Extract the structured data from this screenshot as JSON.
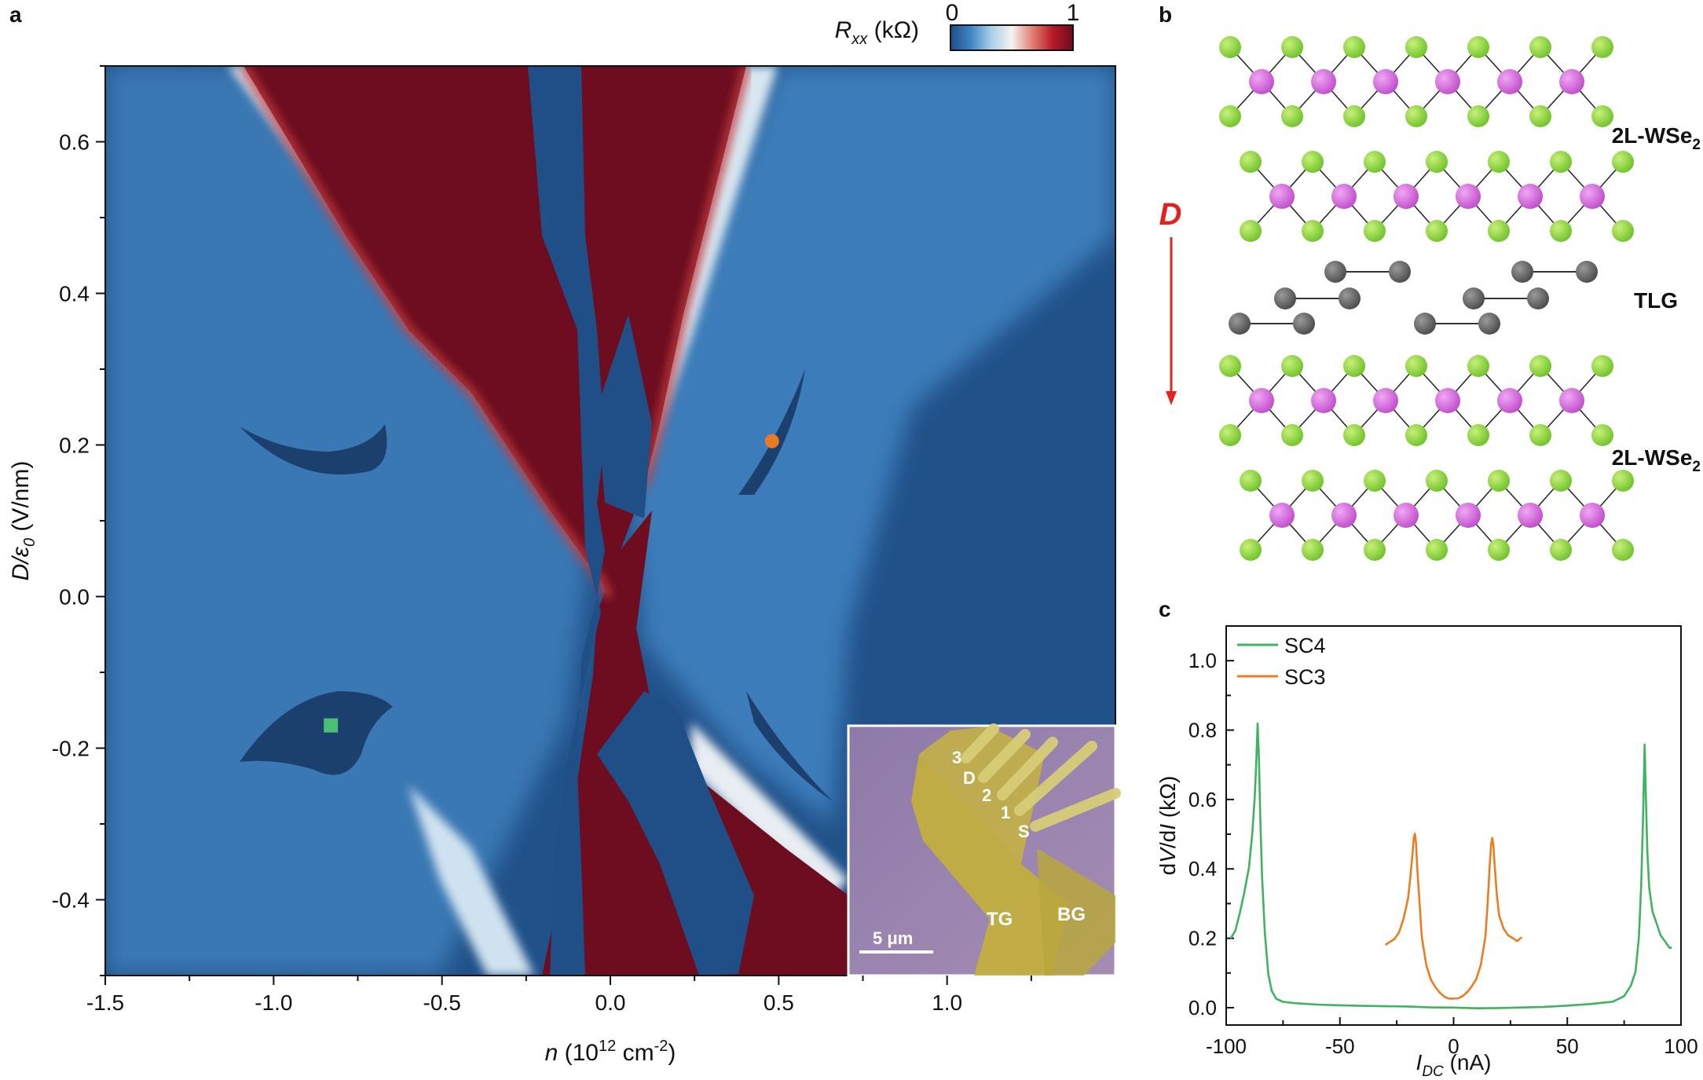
{
  "panels": {
    "a": {
      "letter": "a",
      "colorbar": {
        "label_main": "R",
        "label_sub": "xx",
        "label_unit": " (kΩ)",
        "min_label": "0",
        "max_label": "1",
        "colors": [
          "#1c4e87",
          "#3f86c4",
          "#a9cfe8",
          "#f6f1ef",
          "#e28074",
          "#b81b28",
          "#6a0b1e"
        ]
      },
      "xlabel": {
        "main": "n",
        "rest": " (10",
        "sup": "12",
        "tail": " cm",
        "sup2": "-2",
        "end": ")"
      },
      "ylabel": {
        "main": "D/ε",
        "sub": "0",
        "rest": " (V/nm)"
      },
      "xticks": [
        "-1.5",
        "-1.0",
        "-0.5",
        "0.0",
        "0.5",
        "1.0"
      ],
      "yticks": [
        "0.6",
        "0.4",
        "0.2",
        "0.0",
        "-0.2",
        "-0.4"
      ],
      "markers": [
        {
          "name": "orange-dot",
          "n": 0.48,
          "d": 0.205,
          "color": "#ec7a24"
        },
        {
          "name": "green-square",
          "n": -0.83,
          "d": -0.17,
          "color": "#4cbf76"
        }
      ],
      "inset": {
        "labels": [
          "3",
          "D",
          "2",
          "1",
          "S",
          "TG",
          "BG"
        ],
        "scalebar": "5 μm"
      }
    },
    "b": {
      "letter": "b",
      "top_label": {
        "main": "2L-WSe",
        "sub": "2"
      },
      "middle_label": "TLG",
      "bottom_label": {
        "main": "2L-WSe",
        "sub": "2"
      },
      "field_label": "D",
      "colors": {
        "se": "#7ed23a",
        "w": "#cf58d8",
        "c": "#5f5f5f",
        "arrow": "#e0231f"
      }
    },
    "c": {
      "letter": "c"
    }
  },
  "chart_data": [
    {
      "type": "heatmap",
      "panel": "a",
      "xlabel": "n (10^12 cm^-2)",
      "ylabel": "D/ε0 (V/nm)",
      "xlim": [
        -1.5,
        1.5
      ],
      "ylim": [
        -0.5,
        0.7
      ],
      "colorbar": {
        "label": "Rxx (kΩ)",
        "range": [
          0,
          1
        ]
      },
      "markers": [
        {
          "n": 0.48,
          "d": 0.205,
          "color": "orange"
        },
        {
          "n": -0.83,
          "d": -0.17,
          "color": "green"
        }
      ]
    },
    {
      "type": "line",
      "panel": "c",
      "xlabel": "I_DC (nA)",
      "ylabel": "dV/dI (kΩ)",
      "xlim": [
        -100,
        100
      ],
      "ylim": [
        -0.05,
        1.1
      ],
      "xticks": [
        -100,
        -50,
        0,
        50,
        100
      ],
      "yticks": [
        0.0,
        0.2,
        0.4,
        0.6,
        0.8,
        1.0
      ],
      "legend": "top-left",
      "series": [
        {
          "name": "SC4",
          "color": "#3fb35f",
          "x": [
            -98,
            -96,
            -94,
            -92,
            -90,
            -88.5,
            -87.5,
            -86.8,
            -86.2,
            -85.6,
            -85,
            -84.2,
            -83,
            -81.5,
            -80,
            -78,
            -75,
            -70,
            -60,
            -50,
            -40,
            -30,
            -20,
            -10,
            0,
            10,
            20,
            30,
            40,
            50,
            60,
            70,
            75,
            78,
            80,
            81.5,
            82.5,
            83.3,
            84,
            84.6,
            85.2,
            86,
            87.5,
            89,
            91,
            93,
            95,
            96
          ],
          "y": [
            0.2,
            0.22,
            0.27,
            0.33,
            0.4,
            0.5,
            0.6,
            0.7,
            0.82,
            0.72,
            0.55,
            0.38,
            0.22,
            0.1,
            0.05,
            0.025,
            0.015,
            0.01,
            0.005,
            0.003,
            0.002,
            0.002,
            0.003,
            0.002,
            0.003,
            0.002,
            0.003,
            0.004,
            0.005,
            0.007,
            0.01,
            0.015,
            0.03,
            0.06,
            0.1,
            0.2,
            0.35,
            0.55,
            0.76,
            0.6,
            0.45,
            0.35,
            0.28,
            0.25,
            0.21,
            0.19,
            0.17,
            0.17
          ]
        },
        {
          "name": "SC3",
          "color": "#ea7d22",
          "x": [
            -30,
            -28,
            -26,
            -24,
            -22,
            -20,
            -19,
            -18,
            -17.5,
            -17,
            -16.5,
            -16,
            -15,
            -14,
            -12,
            -10,
            -8,
            -6,
            -4,
            -2,
            0,
            2,
            4,
            6,
            8,
            10,
            12,
            14,
            15,
            16,
            16.5,
            17,
            17.5,
            18,
            19,
            20,
            22,
            24,
            26,
            28,
            30
          ],
          "y": [
            0.18,
            0.19,
            0.2,
            0.22,
            0.26,
            0.32,
            0.38,
            0.45,
            0.49,
            0.5,
            0.47,
            0.4,
            0.3,
            0.2,
            0.12,
            0.08,
            0.06,
            0.045,
            0.035,
            0.03,
            0.03,
            0.03,
            0.035,
            0.045,
            0.06,
            0.08,
            0.12,
            0.2,
            0.3,
            0.42,
            0.47,
            0.49,
            0.47,
            0.42,
            0.33,
            0.27,
            0.23,
            0.21,
            0.2,
            0.19,
            0.2
          ]
        }
      ]
    }
  ]
}
